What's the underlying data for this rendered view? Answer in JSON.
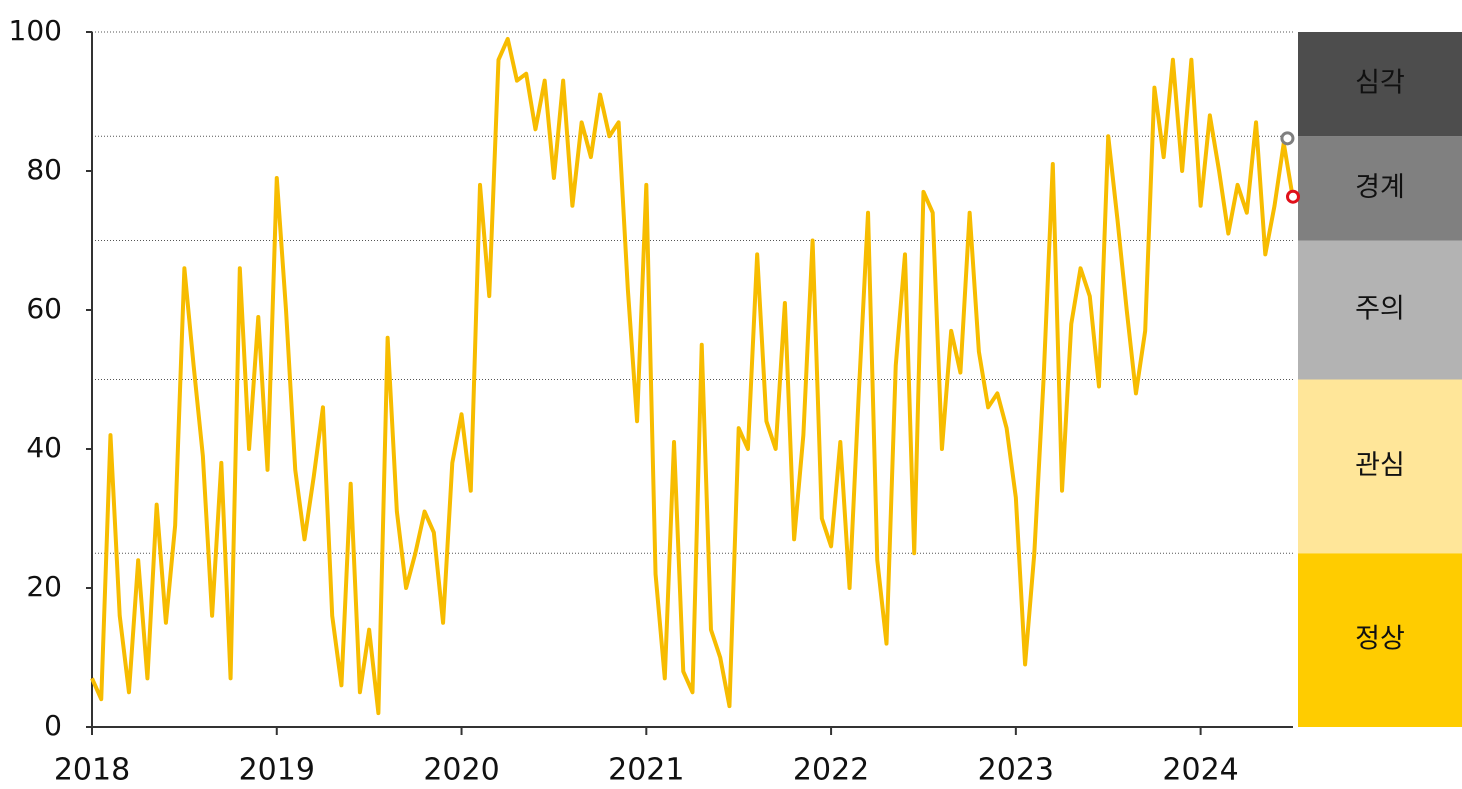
{
  "chart_data": {
    "type": "line",
    "x": [
      2018,
      2018.05,
      2018.1,
      2018.15,
      2018.2,
      2018.25,
      2018.3,
      2018.35,
      2018.4,
      2018.45,
      2018.5,
      2018.55,
      2018.6,
      2018.65,
      2018.7,
      2018.75,
      2018.8,
      2018.85,
      2018.9,
      2018.95,
      2019,
      2019.05,
      2019.1,
      2019.15,
      2019.2,
      2019.25,
      2019.3,
      2019.35,
      2019.4,
      2019.45,
      2019.5,
      2019.55,
      2019.6,
      2019.65,
      2019.7,
      2019.75,
      2019.8,
      2019.85,
      2019.9,
      2019.95,
      2020,
      2020.05,
      2020.1,
      2020.15,
      2020.2,
      2020.25,
      2020.3,
      2020.35,
      2020.4,
      2020.45,
      2020.5,
      2020.55,
      2020.6,
      2020.65,
      2020.7,
      2020.75,
      2020.8,
      2020.85,
      2020.9,
      2020.95,
      2021,
      2021.05,
      2021.1,
      2021.15,
      2021.2,
      2021.25,
      2021.3,
      2021.35,
      2021.4,
      2021.45,
      2021.5,
      2021.55,
      2021.6,
      2021.65,
      2021.7,
      2021.75,
      2021.8,
      2021.85,
      2021.9,
      2021.95,
      2022,
      2022.05,
      2022.1,
      2022.15,
      2022.2,
      2022.25,
      2022.3,
      2022.35,
      2022.4,
      2022.45,
      2022.5,
      2022.55,
      2022.6,
      2022.65,
      2022.7,
      2022.75,
      2022.8,
      2022.85,
      2022.9,
      2022.95,
      2023,
      2023.05,
      2023.1,
      2023.15,
      2023.2,
      2023.25,
      2023.3,
      2023.35,
      2023.4,
      2023.45,
      2023.5,
      2023.55,
      2023.6,
      2023.65,
      2023.7,
      2023.75,
      2023.8,
      2023.85,
      2023.9,
      2023.95,
      2024,
      2024.05,
      2024.1,
      2024.15,
      2024.2,
      2024.25,
      2024.3,
      2024.35,
      2024.4,
      2024.45,
      2024.5
    ],
    "series": [
      {
        "color": "#f7bc00",
        "values": [
          7,
          4,
          42,
          16,
          5,
          24,
          7,
          32,
          15,
          29,
          66,
          52,
          39,
          16,
          38,
          7,
          66,
          40,
          59,
          37,
          79,
          60,
          37,
          27,
          36,
          46,
          16,
          6,
          35,
          5,
          14,
          2,
          56,
          31,
          20,
          25,
          31,
          28,
          15,
          38,
          45,
          34,
          78,
          62,
          96,
          99,
          93,
          94,
          86,
          93,
          79,
          93,
          75,
          87,
          82,
          91,
          85,
          87,
          63,
          44,
          78,
          22,
          7,
          41,
          8,
          5,
          55,
          14,
          10,
          3,
          43,
          40,
          68,
          44,
          40,
          61,
          27,
          42,
          70,
          30,
          26,
          41,
          20,
          48,
          74,
          24,
          12,
          52,
          68,
          25,
          77,
          74,
          40,
          57,
          51,
          74,
          54,
          46,
          48,
          43,
          33,
          9,
          25,
          50,
          81,
          34,
          58,
          66,
          62,
          49,
          85,
          73,
          60,
          48,
          57,
          92,
          82,
          96,
          80,
          96,
          75,
          88,
          80,
          71,
          78,
          74,
          87,
          68,
          75,
          84,
          76
        ]
      }
    ],
    "markers": [
      {
        "x": 2024.47,
        "y": 84.7,
        "color": "#7f7f7f"
      },
      {
        "x": 2024.5,
        "y": 76.3,
        "color": "#e0101a"
      }
    ],
    "zones": [
      {
        "label": "정상",
        "from": 0,
        "to": 25,
        "color": "#ffcc00"
      },
      {
        "label": "관심",
        "from": 25,
        "to": 50,
        "color": "#ffe699"
      },
      {
        "label": "주의",
        "from": 50,
        "to": 70,
        "color": "#b3b3b3"
      },
      {
        "label": "경계",
        "from": 70,
        "to": 85,
        "color": "#808080"
      },
      {
        "label": "심각",
        "from": 85,
        "to": 100,
        "color": "#4d4d4d"
      }
    ],
    "xlim": [
      2018,
      2024.5
    ],
    "xticks": [
      2018,
      2019,
      2020,
      2021,
      2022,
      2023,
      2024
    ],
    "ylim": [
      0,
      100
    ],
    "yticks": [
      0,
      20,
      40,
      60,
      80,
      100
    ]
  }
}
